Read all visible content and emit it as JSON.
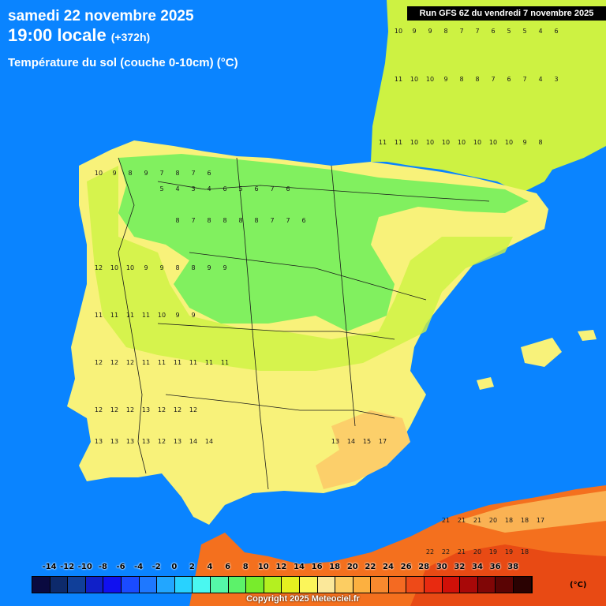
{
  "header": {
    "date": "samedi 22 novembre 2025",
    "time": "19:00 locale",
    "lead": "(+372h)",
    "parameter": "Température du sol (couche 0-10cm) (°C)"
  },
  "run_label": "Run GFS 6Z du vendredi 7 novembre 2025",
  "legend": {
    "ticks": [
      "-14",
      "-12",
      "-10",
      "-8",
      "-6",
      "-4",
      "-2",
      "0",
      "2",
      "4",
      "6",
      "8",
      "10",
      "12",
      "14",
      "16",
      "18",
      "20",
      "22",
      "24",
      "26",
      "28",
      "30",
      "32",
      "34",
      "36",
      "38"
    ],
    "unit": "(°C)",
    "colors": [
      "#0a0a40",
      "#0d2a6b",
      "#103f99",
      "#1020c8",
      "#1010f0",
      "#1a4bff",
      "#1e78ff",
      "#22a6ff",
      "#28d2ff",
      "#4af7f0",
      "#55f7a8",
      "#5cf26a",
      "#78ec2c",
      "#b4f020",
      "#e6f020",
      "#fbf55a",
      "#fbe89a",
      "#fccd62",
      "#fcb040",
      "#f8892e",
      "#f46a22",
      "#ee4a18",
      "#e82a10",
      "#d01008",
      "#a80808",
      "#800606",
      "#5a0404",
      "#2a0202"
    ]
  },
  "map_colors": {
    "sea": "#0a84ff",
    "cool_land": "#6cf05a",
    "mild_land": "#cdf242",
    "warm_land": "#f8f27a",
    "pale_land": "#fbe68e",
    "warmer_land": "#fccf6a",
    "africa_hot": "#f4701e",
    "africa_hotter": "#e84a14"
  },
  "copyright": "Copyright 2025 Meteociel.fr"
}
